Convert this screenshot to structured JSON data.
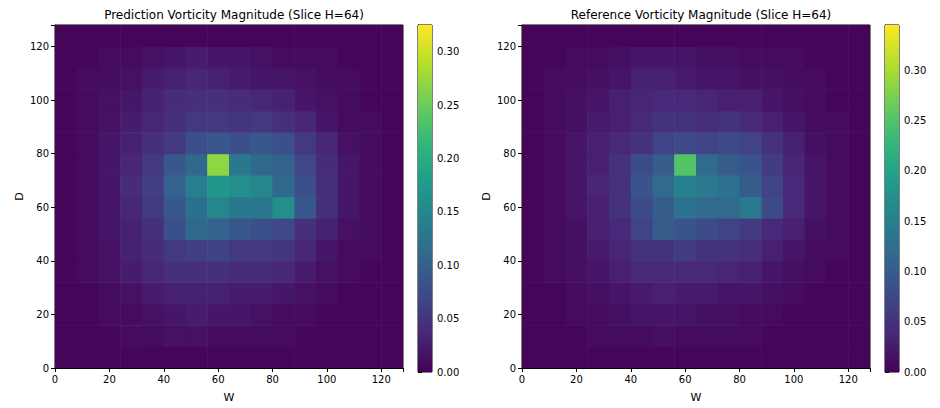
{
  "chart_data": [
    {
      "type": "heatmap",
      "title": "Prediction Vorticity Magnitude (Slice H=64)",
      "x_label": "W",
      "y_label": "D",
      "xlim": [
        0,
        128
      ],
      "ylim": [
        0,
        128
      ],
      "xticks": [
        0,
        20,
        40,
        60,
        80,
        100,
        120
      ],
      "yticks": [
        0,
        20,
        40,
        60,
        80,
        100,
        120
      ],
      "color": "viridis",
      "cell_size": 8,
      "cells": [
        [
          0.005,
          0.005,
          0.005,
          0.005,
          0.005,
          0.005,
          0.005,
          0.005,
          0.005,
          0.005,
          0.005,
          0.005,
          0.005,
          0.005,
          0.005,
          0.005
        ],
        [
          0.005,
          0.005,
          0.005,
          0.01,
          0.01,
          0.015,
          0.015,
          0.01,
          0.01,
          0.01,
          0.01,
          0.005,
          0.005,
          0.005,
          0.005,
          0.005
        ],
        [
          0.005,
          0.005,
          0.01,
          0.01,
          0.015,
          0.02,
          0.025,
          0.02,
          0.02,
          0.015,
          0.01,
          0.01,
          0.005,
          0.005,
          0.005,
          0.005
        ],
        [
          0.005,
          0.005,
          0.01,
          0.015,
          0.025,
          0.03,
          0.03,
          0.03,
          0.025,
          0.025,
          0.02,
          0.015,
          0.01,
          0.005,
          0.005,
          0.005
        ],
        [
          0.005,
          0.01,
          0.015,
          0.025,
          0.035,
          0.045,
          0.045,
          0.045,
          0.04,
          0.04,
          0.035,
          0.025,
          0.015,
          0.01,
          0.005,
          0.005
        ],
        [
          0.005,
          0.01,
          0.015,
          0.03,
          0.04,
          0.055,
          0.06,
          0.065,
          0.055,
          0.055,
          0.05,
          0.035,
          0.02,
          0.01,
          0.01,
          0.005
        ],
        [
          0.005,
          0.01,
          0.02,
          0.03,
          0.045,
          0.08,
          0.11,
          0.1,
          0.09,
          0.08,
          0.07,
          0.045,
          0.03,
          0.015,
          0.01,
          0.005
        ],
        [
          0.005,
          0.01,
          0.02,
          0.035,
          0.055,
          0.09,
          0.12,
          0.15,
          0.13,
          0.13,
          0.16,
          0.09,
          0.045,
          0.02,
          0.01,
          0.005
        ],
        [
          0.005,
          0.01,
          0.02,
          0.04,
          0.06,
          0.1,
          0.14,
          0.17,
          0.16,
          0.15,
          0.11,
          0.08,
          0.045,
          0.02,
          0.01,
          0.005
        ],
        [
          0.005,
          0.01,
          0.02,
          0.035,
          0.055,
          0.09,
          0.11,
          0.27,
          0.13,
          0.11,
          0.1,
          0.07,
          0.04,
          0.02,
          0.01,
          0.005
        ],
        [
          0.005,
          0.01,
          0.02,
          0.03,
          0.045,
          0.055,
          0.08,
          0.09,
          0.08,
          0.09,
          0.08,
          0.055,
          0.035,
          0.015,
          0.01,
          0.005
        ],
        [
          0.005,
          0.01,
          0.015,
          0.025,
          0.035,
          0.045,
          0.055,
          0.055,
          0.05,
          0.055,
          0.045,
          0.035,
          0.02,
          0.01,
          0.01,
          0.005
        ],
        [
          0.005,
          0.01,
          0.015,
          0.02,
          0.03,
          0.04,
          0.045,
          0.045,
          0.04,
          0.035,
          0.03,
          0.02,
          0.015,
          0.01,
          0.005,
          0.005
        ],
        [
          0.005,
          0.01,
          0.01,
          0.015,
          0.025,
          0.03,
          0.035,
          0.03,
          0.025,
          0.02,
          0.02,
          0.015,
          0.01,
          0.01,
          0.005,
          0.005
        ],
        [
          0.005,
          0.005,
          0.01,
          0.01,
          0.015,
          0.02,
          0.025,
          0.02,
          0.02,
          0.015,
          0.01,
          0.01,
          0.01,
          0.005,
          0.005,
          0.005
        ],
        [
          0.005,
          0.005,
          0.005,
          0.005,
          0.005,
          0.005,
          0.005,
          0.005,
          0.005,
          0.005,
          0.005,
          0.005,
          0.005,
          0.005,
          0.005,
          0.005
        ]
      ],
      "colorbar": {
        "range": [
          0,
          0.325
        ],
        "ticks": [
          {
            "value": 0,
            "label": "0.00"
          },
          {
            "value": 0.05,
            "label": "0.05"
          },
          {
            "value": 0.1,
            "label": "0.10"
          },
          {
            "value": 0.15,
            "label": "0.15"
          },
          {
            "value": 0.2,
            "label": "0.20"
          },
          {
            "value": 0.25,
            "label": "0.25"
          },
          {
            "value": 0.3,
            "label": "0.30"
          }
        ]
      }
    },
    {
      "type": "heatmap",
      "title": "Reference Vorticity Magnitude (Slice H=64)",
      "x_label": "W",
      "y_label": "D",
      "xlim": [
        0,
        128
      ],
      "ylim": [
        0,
        128
      ],
      "xticks": [
        0,
        20,
        40,
        60,
        80,
        100,
        120
      ],
      "yticks": [
        0,
        20,
        40,
        60,
        80,
        100,
        120
      ],
      "color": "viridis",
      "cell_size": 8,
      "cells": [
        [
          0.005,
          0.005,
          0.005,
          0.005,
          0.005,
          0.005,
          0.005,
          0.005,
          0.005,
          0.005,
          0.005,
          0.005,
          0.005,
          0.005,
          0.005,
          0.005
        ],
        [
          0.005,
          0.005,
          0.005,
          0.01,
          0.01,
          0.01,
          0.015,
          0.01,
          0.01,
          0.01,
          0.01,
          0.005,
          0.005,
          0.005,
          0.005,
          0.005
        ],
        [
          0.005,
          0.005,
          0.01,
          0.01,
          0.015,
          0.02,
          0.02,
          0.02,
          0.015,
          0.015,
          0.01,
          0.01,
          0.005,
          0.005,
          0.005,
          0.005
        ],
        [
          0.005,
          0.005,
          0.01,
          0.015,
          0.02,
          0.025,
          0.03,
          0.025,
          0.025,
          0.02,
          0.02,
          0.015,
          0.01,
          0.005,
          0.005,
          0.005
        ],
        [
          0.005,
          0.01,
          0.015,
          0.02,
          0.03,
          0.04,
          0.04,
          0.04,
          0.04,
          0.035,
          0.03,
          0.02,
          0.015,
          0.01,
          0.005,
          0.005
        ],
        [
          0.005,
          0.01,
          0.015,
          0.025,
          0.035,
          0.05,
          0.05,
          0.06,
          0.05,
          0.05,
          0.045,
          0.03,
          0.02,
          0.01,
          0.01,
          0.005
        ],
        [
          0.005,
          0.01,
          0.015,
          0.03,
          0.04,
          0.07,
          0.1,
          0.09,
          0.08,
          0.07,
          0.06,
          0.04,
          0.03,
          0.015,
          0.01,
          0.005
        ],
        [
          0.005,
          0.01,
          0.02,
          0.03,
          0.05,
          0.08,
          0.1,
          0.13,
          0.12,
          0.12,
          0.14,
          0.08,
          0.04,
          0.02,
          0.01,
          0.005
        ],
        [
          0.005,
          0.01,
          0.02,
          0.035,
          0.05,
          0.09,
          0.12,
          0.15,
          0.14,
          0.13,
          0.1,
          0.07,
          0.04,
          0.02,
          0.01,
          0.005
        ],
        [
          0.005,
          0.01,
          0.02,
          0.03,
          0.05,
          0.08,
          0.1,
          0.25,
          0.12,
          0.1,
          0.09,
          0.06,
          0.035,
          0.02,
          0.01,
          0.005
        ],
        [
          0.005,
          0.01,
          0.02,
          0.03,
          0.04,
          0.05,
          0.07,
          0.08,
          0.07,
          0.08,
          0.07,
          0.05,
          0.03,
          0.015,
          0.01,
          0.005
        ],
        [
          0.005,
          0.01,
          0.015,
          0.025,
          0.03,
          0.04,
          0.05,
          0.05,
          0.045,
          0.05,
          0.04,
          0.03,
          0.02,
          0.01,
          0.01,
          0.005
        ],
        [
          0.005,
          0.01,
          0.015,
          0.02,
          0.03,
          0.035,
          0.04,
          0.04,
          0.035,
          0.03,
          0.03,
          0.02,
          0.015,
          0.01,
          0.005,
          0.005
        ],
        [
          0.005,
          0.01,
          0.01,
          0.015,
          0.02,
          0.03,
          0.03,
          0.025,
          0.02,
          0.02,
          0.015,
          0.015,
          0.01,
          0.01,
          0.005,
          0.005
        ],
        [
          0.005,
          0.005,
          0.01,
          0.01,
          0.015,
          0.02,
          0.02,
          0.02,
          0.015,
          0.015,
          0.01,
          0.01,
          0.01,
          0.005,
          0.005,
          0.005
        ],
        [
          0.005,
          0.005,
          0.005,
          0.005,
          0.005,
          0.005,
          0.005,
          0.005,
          0.005,
          0.005,
          0.005,
          0.005,
          0.005,
          0.005,
          0.005,
          0.005
        ]
      ],
      "colorbar": {
        "range": [
          0,
          0.345
        ],
        "ticks": [
          {
            "value": 0,
            "label": "0.00"
          },
          {
            "value": 0.05,
            "label": "0.05"
          },
          {
            "value": 0.1,
            "label": "0.10"
          },
          {
            "value": 0.15,
            "label": "0.15"
          },
          {
            "value": 0.2,
            "label": "0.20"
          },
          {
            "value": 0.25,
            "label": "0.25"
          },
          {
            "value": 0.3,
            "label": "0.30"
          }
        ]
      }
    }
  ]
}
